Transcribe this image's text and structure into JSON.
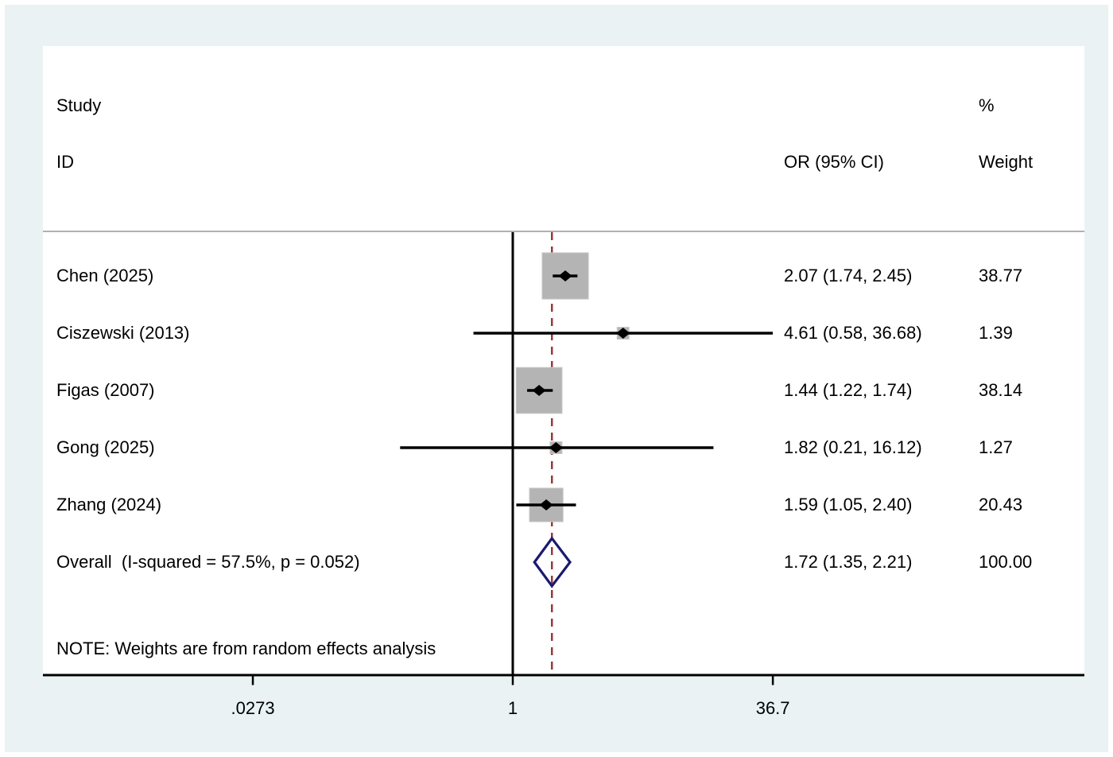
{
  "header": {
    "study_label": "Study",
    "id_label": "ID",
    "or_label": "OR (95% CI)",
    "percent_label": "%",
    "weight_label": "Weight"
  },
  "note": "NOTE: Weights are from random effects analysis",
  "colors": {
    "background": "#eaf2f3",
    "panel": "#ffffff",
    "separator": "#b0b0b0",
    "weight_box": "#b4b4b4",
    "weight_box_rim": "#c9c9c9",
    "marker_black": "#000000",
    "overall_diamond_navy": "#1a1a6e",
    "overall_line_maroon": "#98393b",
    "axis_black": "#000000"
  },
  "chart_data": {
    "type": "forest",
    "effect_measure": "OR",
    "x_axis": {
      "scale": "log",
      "ticks": [
        0.0273,
        1,
        36.7
      ],
      "tick_labels": [
        ".0273",
        "1",
        "36.7"
      ]
    },
    "null_line_value": 1,
    "overall_dashed_line_value": 1.72,
    "studies": [
      {
        "id": "Chen (2025)",
        "or": 2.07,
        "ci_low": 1.74,
        "ci_high": 2.45,
        "or_text": "2.07 (1.74, 2.45)",
        "weight": 38.77,
        "weight_text": "38.77"
      },
      {
        "id": "Ciszewski (2013)",
        "or": 4.61,
        "ci_low": 0.58,
        "ci_high": 36.68,
        "or_text": "4.61 (0.58, 36.68)",
        "weight": 1.39,
        "weight_text": "1.39"
      },
      {
        "id": "Figas (2007)",
        "or": 1.44,
        "ci_low": 1.22,
        "ci_high": 1.74,
        "or_text": "1.44 (1.22, 1.74)",
        "weight": 38.14,
        "weight_text": "38.14"
      },
      {
        "id": "Gong (2025)",
        "or": 1.82,
        "ci_low": 0.21,
        "ci_high": 16.12,
        "or_text": "1.82 (0.21, 16.12)",
        "weight": 1.27,
        "weight_text": "1.27"
      },
      {
        "id": "Zhang (2024)",
        "or": 1.59,
        "ci_low": 1.05,
        "ci_high": 2.4,
        "or_text": "1.59 (1.05, 2.40)",
        "weight": 20.43,
        "weight_text": "20.43"
      }
    ],
    "overall": {
      "label": "Overall  (I-squared = 57.5%, p = 0.052)",
      "or": 1.72,
      "ci_low": 1.35,
      "ci_high": 2.21,
      "or_text": "1.72 (1.35, 2.21)",
      "weight_text": "100.00",
      "i_squared": "57.5%",
      "p_value": "0.052"
    }
  }
}
